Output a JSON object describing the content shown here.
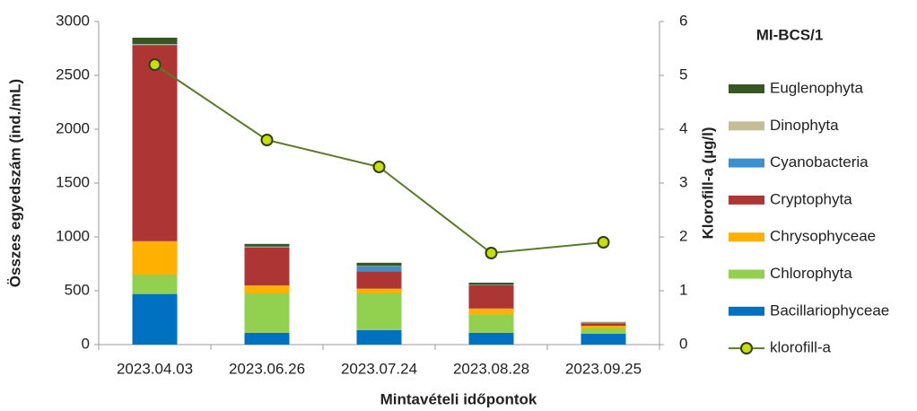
{
  "chart_data": {
    "type": "bar",
    "stacked": true,
    "title": "MI-BCS/1",
    "xlabel": "Mintavételi időpontok",
    "ylabel": "Összes egyedszám (ind./mL)",
    "y2label": "Klorofill-a (µg/l)",
    "categories": [
      "2023.04.03",
      "2023.06.26",
      "2023.07.24",
      "2023.08.28",
      "2023.09.25"
    ],
    "ylim": [
      0,
      3000
    ],
    "yticks": [
      0,
      500,
      1000,
      1500,
      2000,
      2500,
      3000
    ],
    "y2lim": [
      0,
      6
    ],
    "y2ticks": [
      0,
      1,
      2,
      3,
      4,
      5,
      6
    ],
    "grid": false,
    "legend": "right",
    "series": [
      {
        "name": "Bacillariophyceae",
        "color": "#0070c0",
        "values": [
          470,
          110,
          135,
          110,
          100
        ]
      },
      {
        "name": "Chlorophyta",
        "color": "#92d050",
        "values": [
          180,
          365,
          340,
          170,
          50
        ]
      },
      {
        "name": "Chrysophyceae",
        "color": "#ffb000",
        "values": [
          310,
          75,
          45,
          55,
          25
        ]
      },
      {
        "name": "Cryptophyta",
        "color": "#ad3533",
        "values": [
          1820,
          350,
          160,
          215,
          20
        ]
      },
      {
        "name": "Cyanobacteria",
        "color": "#3f8fcc",
        "values": [
          5,
          5,
          45,
          3,
          5
        ]
      },
      {
        "name": "Dinophyta",
        "color": "#c4bd97",
        "values": [
          5,
          5,
          5,
          2,
          5
        ]
      },
      {
        "name": "Euglenophyta",
        "color": "#375623",
        "values": [
          60,
          25,
          30,
          20,
          5
        ]
      },
      {
        "name": "klorofill-a",
        "type": "line",
        "axis": "y2",
        "color": "#5a7a2a",
        "marker_color": "#c8e000",
        "values": [
          5.2,
          3.8,
          3.3,
          1.7,
          1.9
        ]
      }
    ]
  }
}
